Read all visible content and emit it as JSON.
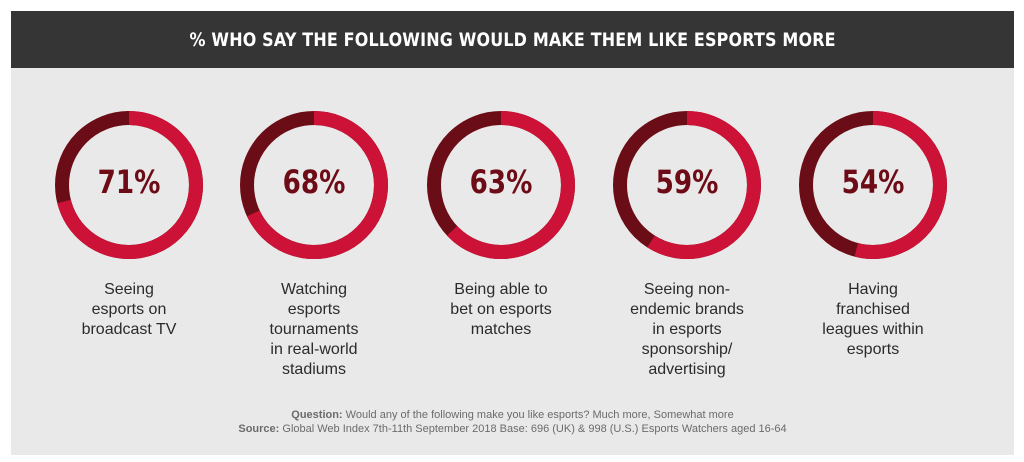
{
  "header": {
    "title": "% WHO SAY THE FOLLOWING WOULD MAKE THEM LIKE ESPORTS MORE"
  },
  "colors": {
    "header_bg": "#353535",
    "panel_bg": "#e9e9e9",
    "ring_main": "#cc1236",
    "ring_dark": "#6b0d17",
    "pct_text": "#6d0c16"
  },
  "chart_data": {
    "type": "pie",
    "title": "% WHO SAY THE FOLLOWING WOULD MAKE THEM LIKE ESPORTS MORE",
    "categories": [
      "Seeing esports on broadcast TV",
      "Watching esports tournaments in real-world stadiums",
      "Being able to bet on esports matches",
      "Seeing non-endemic brands in esports sponsorship/ advertising",
      "Having franchised leagues within esports"
    ],
    "values": [
      71,
      68,
      63,
      59,
      54
    ],
    "value_labels": [
      "71%",
      "68%",
      "63%",
      "59%",
      "54%"
    ]
  },
  "labels": [
    [
      "Seeing",
      "esports on",
      "broadcast TV"
    ],
    [
      "Watching",
      "esports",
      "tournaments",
      "in real-world",
      "stadiums"
    ],
    [
      "Being able to",
      "bet on esports",
      "matches"
    ],
    [
      "Seeing non-",
      "endemic brands",
      "in esports",
      "sponsorship/",
      "advertising"
    ],
    [
      "Having",
      "franchised",
      "leagues within",
      "esports"
    ]
  ],
  "footnote": {
    "question_label": "Question:",
    "question_text": "Would any of the following make you like esports? Much more, Somewhat more",
    "source_label": "Source:",
    "source_text": "Global Web Index 7th-11th September 2018 Base: 696 (UK) & 998 (U.S.) Esports Watchers aged 16-64"
  }
}
